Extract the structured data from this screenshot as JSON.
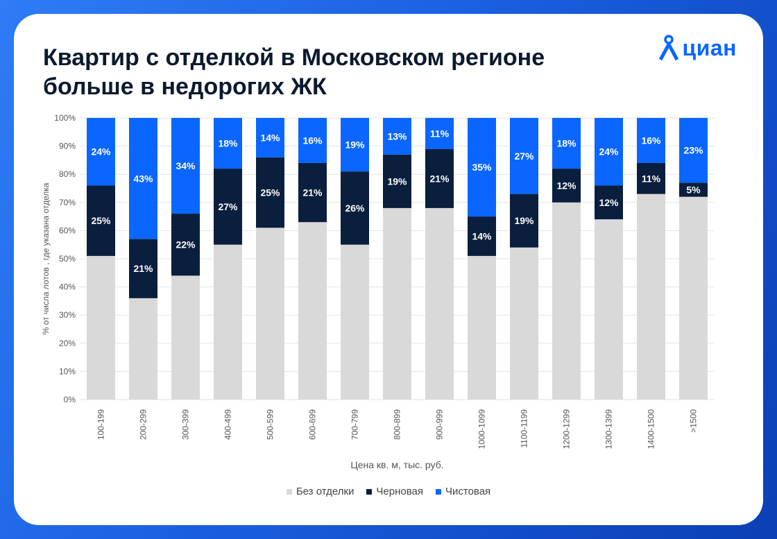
{
  "title": {
    "line1": "Квартир с отделкой в Московском регионе",
    "line2": "больше в недорогих ЖК"
  },
  "brand": {
    "name": "циан",
    "icon": "cian-person-pin-icon",
    "color": "#0a66ff"
  },
  "chart_data": {
    "type": "bar",
    "stacked": true,
    "xlabel": "Цена кв. м, тыс. руб.",
    "ylabel": "% от числа лотов , где указана отделка",
    "ylim": [
      0,
      100
    ],
    "yticks": [
      "0%",
      "10%",
      "20%",
      "30%",
      "40%",
      "50%",
      "60%",
      "70%",
      "80%",
      "90%",
      "100%"
    ],
    "categories": [
      "100-199",
      "200-299",
      "300-399",
      "400-499",
      "500-599",
      "600-699",
      "700-799",
      "800-899",
      "900-999",
      "1000-1099",
      "1100-1199",
      "1200-1299",
      "1300-1399",
      "1400-1500",
      ">1500"
    ],
    "series": [
      {
        "name": "Без отделки",
        "color": "#d9d9d9",
        "values": [
          51,
          36,
          44,
          55,
          61,
          63,
          55,
          68,
          68,
          51,
          54,
          70,
          64,
          73,
          72
        ],
        "labels": []
      },
      {
        "name": "Черновая",
        "color": "#0a1e3d",
        "values": [
          25,
          21,
          22,
          27,
          25,
          21,
          26,
          19,
          21,
          14,
          19,
          12,
          12,
          11,
          5
        ],
        "labels": [
          "25%",
          "21%",
          "22%",
          "27%",
          "25%",
          "21%",
          "26%",
          "19%",
          "21%",
          "14%",
          "19%",
          "12%",
          "12%",
          "11%",
          "5%"
        ]
      },
      {
        "name": "Чистовая",
        "color": "#0a66ff",
        "values": [
          24,
          43,
          34,
          18,
          14,
          16,
          19,
          13,
          11,
          35,
          27,
          18,
          24,
          16,
          23
        ],
        "labels": [
          "24%",
          "43%",
          "34%",
          "18%",
          "14%",
          "16%",
          "19%",
          "13%",
          "11%",
          "35%",
          "27%",
          "18%",
          "24%",
          "16%",
          "23%"
        ]
      }
    ],
    "legend": {
      "position": "bottom"
    }
  },
  "colors": {
    "background": "#1a5fe0",
    "card": "#ffffff",
    "title": "#0c1a2e",
    "grid": "#e3e3e3",
    "axis_text": "#555555"
  }
}
